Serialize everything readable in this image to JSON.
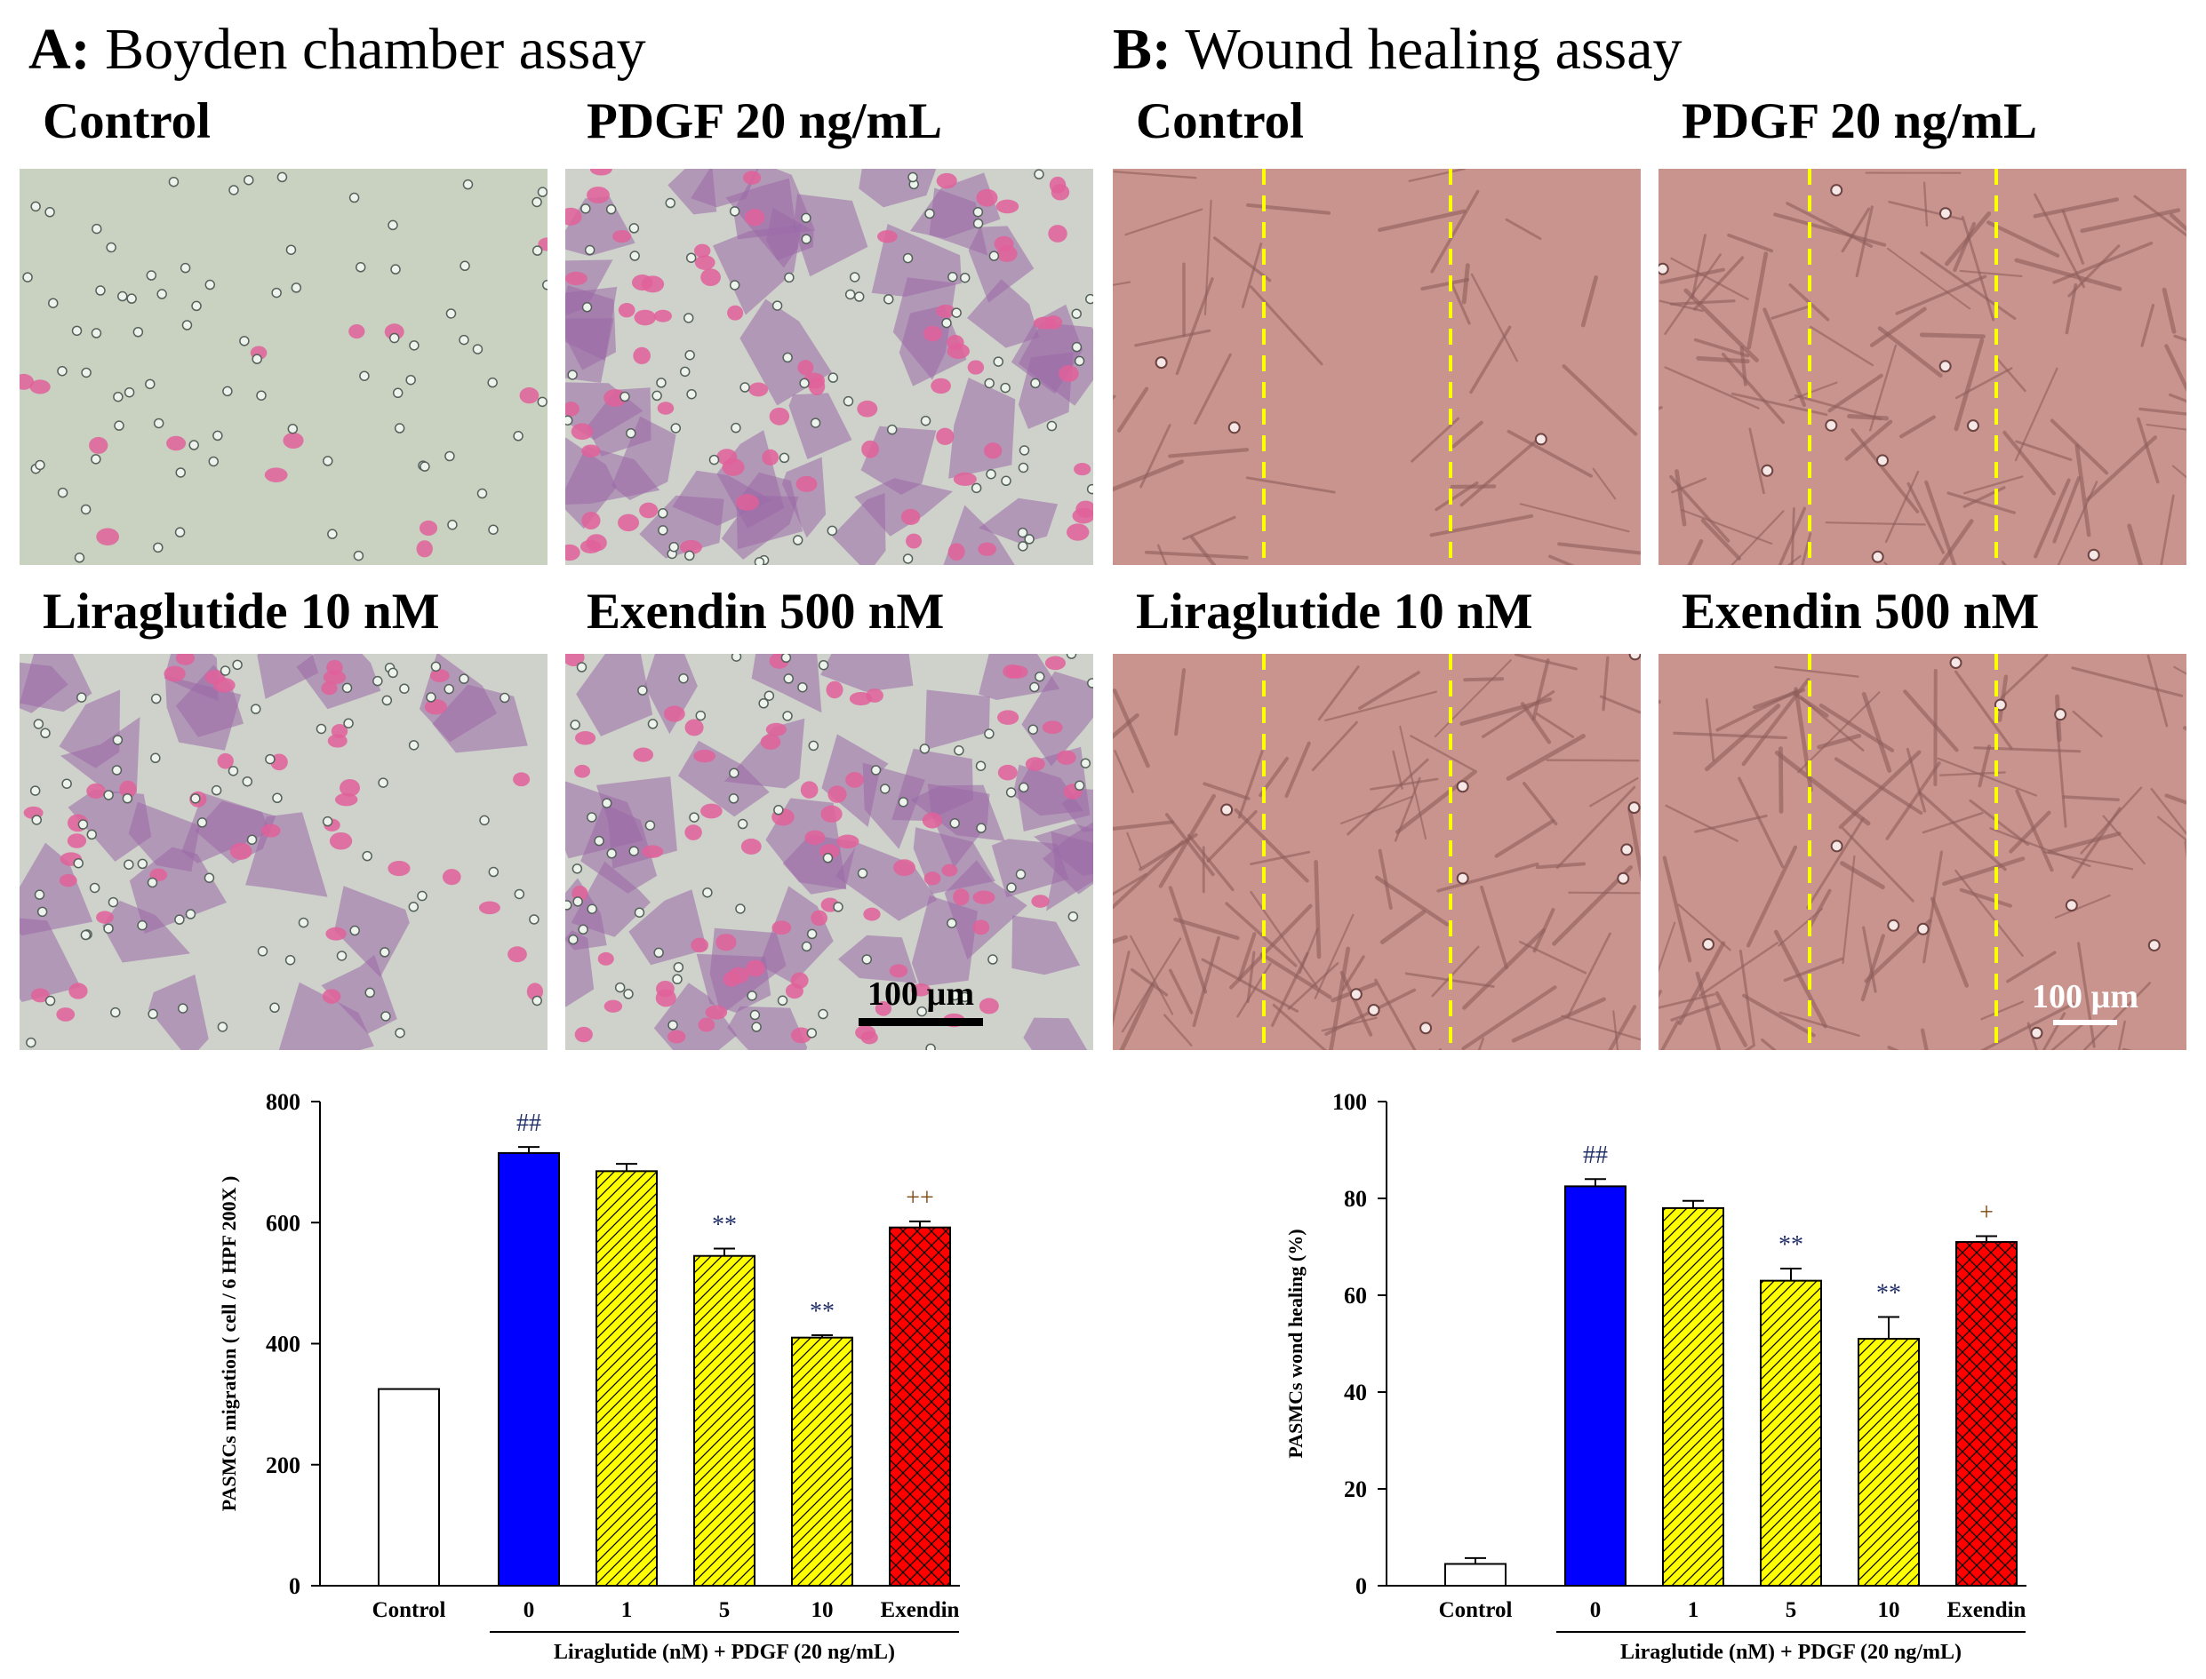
{
  "panel_a": {
    "letter": "A:",
    "title": "Boyden chamber assay",
    "labels": [
      "Control",
      "PDGF 20 ng/mL",
      "Liraglutide 10 nM",
      "Exendin 500 nM"
    ],
    "scale_bar": "100 µm"
  },
  "panel_b": {
    "letter": "B:",
    "title": "Wound healing assay",
    "labels": [
      "Control",
      "PDGF 20 ng/mL",
      "Liraglutide 10 nM",
      "Exendin 500 nM"
    ],
    "scale_bar": "100 µm"
  },
  "colors": {
    "control": "#ffffff",
    "pdgf": "#0000ff",
    "liraglutide": "#ffff00",
    "exendin": "#ff0000",
    "boyden_background": "#c8cfc0",
    "wound_background": "#c9948e",
    "wound_lines": "#ffff00"
  },
  "chart_data": [
    {
      "type": "bar",
      "categories": [
        "Control",
        "0",
        "1",
        "5",
        "10",
        "Exendin"
      ],
      "values": [
        325,
        715,
        685,
        545,
        410,
        592
      ],
      "errors": [
        0,
        10,
        12,
        12,
        4,
        10
      ],
      "annotations": [
        "",
        "##",
        "",
        "**",
        "**",
        "++"
      ],
      "fills": [
        "white",
        "blue",
        "yellow-hatched",
        "yellow-hatched",
        "yellow-hatched",
        "red-crosshatched"
      ],
      "ylabel": "PASMCs migration ( cell / 6 HPF 200X )",
      "xlabel": "Liraglutide (nM) + PDGF (20 ng/mL)",
      "ylim": [
        0,
        800
      ],
      "yticks": [
        "0",
        "200",
        "400",
        "600",
        "800"
      ]
    },
    {
      "type": "bar",
      "categories": [
        "Control",
        "0",
        "1",
        "5",
        "10",
        "Exendin"
      ],
      "values": [
        4.5,
        82.5,
        78,
        63,
        51,
        71
      ],
      "errors": [
        1.2,
        1.5,
        1.5,
        2.5,
        4.5,
        1.2
      ],
      "annotations": [
        "",
        "##",
        "",
        "**",
        "**",
        "+"
      ],
      "fills": [
        "white",
        "blue",
        "yellow-hatched",
        "yellow-hatched",
        "yellow-hatched",
        "red-crosshatched"
      ],
      "ylabel": "PASMCs wond healing (%)",
      "xlabel": "Liraglutide (nM) + PDGF (20 ng/mL)",
      "ylim": [
        0,
        100
      ],
      "yticks": [
        "0",
        "20",
        "40",
        "60",
        "80",
        "100"
      ]
    }
  ]
}
